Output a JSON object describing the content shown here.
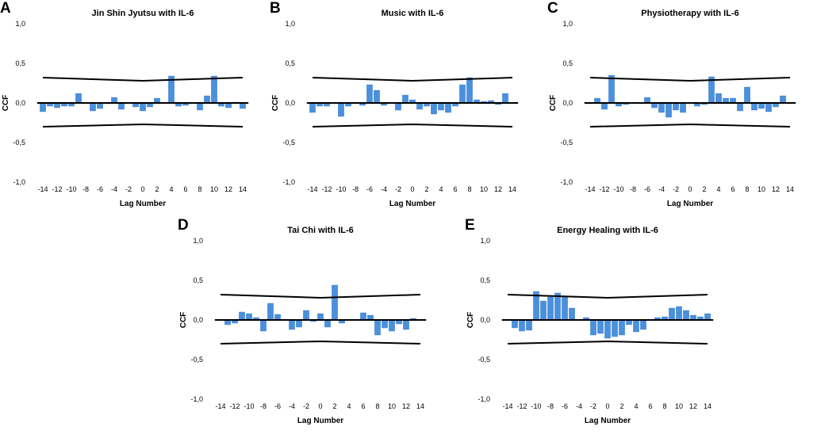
{
  "chart_data": [
    {
      "letter": "A",
      "type": "bar",
      "title": "Jin Shin Jyutsu with IL-6",
      "xlabel": "Lag Number",
      "ylabel": "CCF",
      "x": [
        -14,
        -13,
        -12,
        -11,
        -10,
        -9,
        -8,
        -7,
        -6,
        -5,
        -4,
        -3,
        -2,
        -1,
        0,
        1,
        2,
        3,
        4,
        5,
        6,
        7,
        8,
        9,
        10,
        11,
        12,
        13,
        14
      ],
      "xticks": [
        "-14",
        "-12",
        "-10",
        "-8",
        "-6",
        "-4",
        "-2",
        "0",
        "2",
        "4",
        "6",
        "8",
        "10",
        "12",
        "14"
      ],
      "yticks": [
        "-1,0",
        "-0,5",
        "0,0",
        "0,5",
        "1,0"
      ],
      "ylim": [
        -1,
        1
      ],
      "values": [
        -0.11,
        -0.04,
        -0.06,
        -0.04,
        -0.04,
        0.12,
        0.0,
        -0.1,
        -0.07,
        -0.01,
        0.07,
        -0.08,
        0.0,
        -0.05,
        -0.1,
        -0.05,
        0.06,
        0.0,
        0.34,
        -0.04,
        -0.03,
        0.0,
        -0.09,
        0.09,
        0.34,
        -0.04,
        -0.06,
        0.01,
        -0.07
      ],
      "confidence_upper": [
        0.32,
        0.28,
        0.32
      ],
      "confidence_lower": [
        -0.3,
        -0.27,
        -0.3
      ]
    },
    {
      "letter": "B",
      "type": "bar",
      "title": "Music with IL-6",
      "xlabel": "Lag Number",
      "ylabel": "CCF",
      "x": [
        -14,
        -13,
        -12,
        -11,
        -10,
        -9,
        -8,
        -7,
        -6,
        -5,
        -4,
        -3,
        -2,
        -1,
        0,
        1,
        2,
        3,
        4,
        5,
        6,
        7,
        8,
        9,
        10,
        11,
        12,
        13,
        14
      ],
      "xticks": [
        "-14",
        "-12",
        "-10",
        "-8",
        "-6",
        "-4",
        "-2",
        "0",
        "2",
        "4",
        "6",
        "8",
        "10",
        "12",
        "14"
      ],
      "yticks": [
        "-1,0",
        "-0,5",
        "0,0",
        "0,5",
        "1,0"
      ],
      "ylim": [
        -1,
        1
      ],
      "values": [
        -0.12,
        -0.04,
        -0.04,
        0.0,
        -0.17,
        -0.04,
        0.0,
        -0.03,
        0.23,
        0.16,
        -0.03,
        0.0,
        -0.09,
        0.1,
        0.04,
        -0.08,
        -0.04,
        -0.14,
        -0.09,
        -0.12,
        -0.04,
        0.23,
        0.32,
        0.04,
        0.02,
        0.03,
        -0.02,
        0.12,
        0.0
      ],
      "confidence_upper": [
        0.32,
        0.28,
        0.32
      ],
      "confidence_lower": [
        -0.3,
        -0.27,
        -0.3
      ]
    },
    {
      "letter": "C",
      "type": "bar",
      "title": "Physiotherapy with IL-6",
      "xlabel": "Lag Number",
      "ylabel": "CCF",
      "x": [
        -14,
        -13,
        -12,
        -11,
        -10,
        -9,
        -8,
        -7,
        -6,
        -5,
        -4,
        -3,
        -2,
        -1,
        0,
        1,
        2,
        3,
        4,
        5,
        6,
        7,
        8,
        9,
        10,
        11,
        12,
        13,
        14
      ],
      "xticks": [
        "-14",
        "-12",
        "-10",
        "-8",
        "-6",
        "-4",
        "-2",
        "0",
        "2",
        "4",
        "6",
        "8",
        "10",
        "12",
        "14"
      ],
      "yticks": [
        "-1,0",
        "-0,5",
        "0,0",
        "0,5",
        "1,0"
      ],
      "ylim": [
        -1,
        1
      ],
      "values": [
        -0.01,
        0.06,
        -0.08,
        0.35,
        -0.04,
        -0.02,
        0.0,
        0.0,
        0.07,
        -0.06,
        -0.12,
        -0.18,
        -0.09,
        -0.12,
        0.0,
        -0.04,
        -0.02,
        0.33,
        0.12,
        0.06,
        0.06,
        -0.1,
        0.2,
        -0.09,
        -0.07,
        -0.11,
        -0.05,
        0.09,
        0.0
      ],
      "confidence_upper": [
        0.32,
        0.28,
        0.32
      ],
      "confidence_lower": [
        -0.3,
        -0.27,
        -0.3
      ]
    },
    {
      "letter": "D",
      "type": "bar",
      "title": "Tai Chi with IL-6",
      "xlabel": "Lag Number",
      "ylabel": "CCF",
      "x": [
        -14,
        -13,
        -12,
        -11,
        -10,
        -9,
        -8,
        -7,
        -6,
        -5,
        -4,
        -3,
        -2,
        -1,
        0,
        1,
        2,
        3,
        4,
        5,
        6,
        7,
        8,
        9,
        10,
        11,
        12,
        13,
        14
      ],
      "xticks": [
        "-14",
        "-12",
        "-10",
        "-8",
        "-6",
        "-4",
        "-2",
        "0",
        "2",
        "4",
        "6",
        "8",
        "10",
        "12",
        "14"
      ],
      "yticks": [
        "-1,0",
        "-0,5",
        "0,0",
        "0,5",
        "1,0"
      ],
      "ylim": [
        -1,
        1
      ],
      "values": [
        0.0,
        -0.06,
        -0.04,
        0.1,
        0.08,
        0.03,
        -0.14,
        0.21,
        0.07,
        0.0,
        -0.12,
        -0.09,
        0.12,
        -0.02,
        0.08,
        -0.09,
        0.44,
        -0.04,
        0.0,
        0.0,
        0.09,
        0.06,
        -0.19,
        -0.1,
        -0.14,
        -0.05,
        -0.12,
        0.02,
        0.0
      ],
      "confidence_upper": [
        0.32,
        0.28,
        0.32
      ],
      "confidence_lower": [
        -0.3,
        -0.27,
        -0.3
      ]
    },
    {
      "letter": "E",
      "type": "bar",
      "title": "Energy Healing with IL-6",
      "xlabel": "Lag Number",
      "ylabel": "CCF",
      "x": [
        -14,
        -13,
        -12,
        -11,
        -10,
        -9,
        -8,
        -7,
        -6,
        -5,
        -4,
        -3,
        -2,
        -1,
        0,
        1,
        2,
        3,
        4,
        5,
        6,
        7,
        8,
        9,
        10,
        11,
        12,
        13,
        14
      ],
      "xticks": [
        "-14",
        "-12",
        "-10",
        "-8",
        "-6",
        "-4",
        "-2",
        "0",
        "2",
        "4",
        "6",
        "8",
        "10",
        "12",
        "14"
      ],
      "yticks": [
        "-1,0",
        "-0,5",
        "0,0",
        "0,5",
        "1,0"
      ],
      "ylim": [
        -1,
        1
      ],
      "values": [
        0.0,
        -0.1,
        -0.14,
        -0.13,
        0.36,
        0.24,
        0.29,
        0.34,
        0.29,
        0.15,
        0.0,
        0.03,
        -0.19,
        -0.17,
        -0.23,
        -0.21,
        -0.19,
        -0.06,
        -0.15,
        -0.12,
        0.0,
        0.03,
        0.04,
        0.15,
        0.17,
        0.12,
        0.06,
        0.04,
        0.08
      ],
      "confidence_upper": [
        0.32,
        0.28,
        0.32
      ],
      "confidence_lower": [
        -0.3,
        -0.27,
        -0.3
      ]
    }
  ]
}
